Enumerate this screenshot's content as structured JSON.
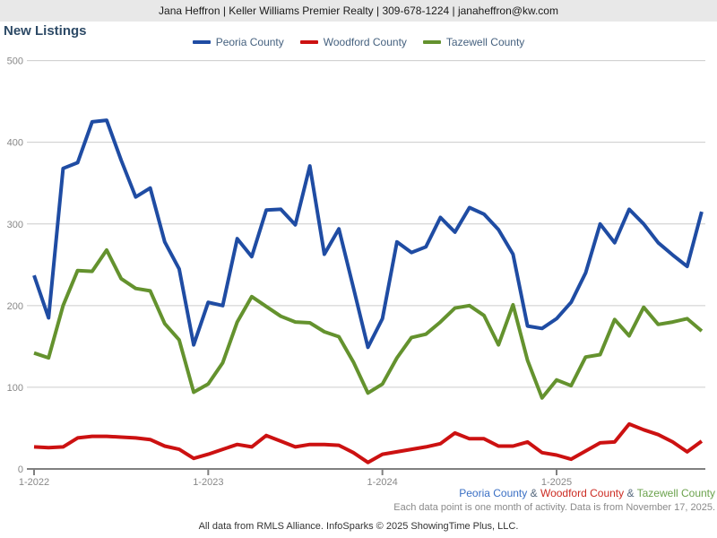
{
  "header": {
    "text": "Jana Heffron | Keller Williams Premier Realty | 309-678-1224 | janaheffron@kw.com"
  },
  "title": "New Listings",
  "legend": [
    {
      "label": "Peoria County",
      "color": "#1f4ca3"
    },
    {
      "label": "Woodford County",
      "color": "#cc1111"
    },
    {
      "label": "Tazewell County",
      "color": "#64922e"
    }
  ],
  "colors": {
    "header_bg": "#e8e8e8",
    "title_text": "#2d4a66",
    "legend_text": "#45617f",
    "grid_line": "#cccccc",
    "axis_line": "#808080",
    "tick_label": "#888888",
    "note_text": "#8a8a8a",
    "attribution_text": "#333333",
    "amp_text": "#55687d"
  },
  "chart_data": {
    "type": "line",
    "title": "New Listings",
    "xlabel": "",
    "ylabel": "",
    "ylim": [
      0,
      500
    ],
    "y_ticks": [
      0,
      100,
      200,
      300,
      400,
      500
    ],
    "grid": true,
    "legend_position": "top-center",
    "x_tick_labels": [
      "1-2022",
      "1-2023",
      "1-2024",
      "1-2025"
    ],
    "x": [
      "1-2022",
      "2-2022",
      "3-2022",
      "4-2022",
      "5-2022",
      "6-2022",
      "7-2022",
      "8-2022",
      "9-2022",
      "10-2022",
      "11-2022",
      "12-2022",
      "1-2023",
      "2-2023",
      "3-2023",
      "4-2023",
      "5-2023",
      "6-2023",
      "7-2023",
      "8-2023",
      "9-2023",
      "10-2023",
      "11-2023",
      "12-2023",
      "1-2024",
      "2-2024",
      "3-2024",
      "4-2024",
      "5-2024",
      "6-2024",
      "7-2024",
      "8-2024",
      "9-2024",
      "10-2024",
      "11-2024",
      "12-2024",
      "1-2025",
      "2-2025",
      "3-2025",
      "4-2025",
      "5-2025",
      "6-2025",
      "7-2025",
      "8-2025",
      "9-2025",
      "10-2025",
      "11-2025"
    ],
    "series": [
      {
        "name": "Peoria County",
        "color": "#1f4ca3",
        "values": [
          237,
          185,
          368,
          375,
          425,
          427,
          378,
          333,
          344,
          278,
          245,
          152,
          204,
          200,
          282,
          260,
          317,
          318,
          299,
          371,
          263,
          294,
          222,
          149,
          184,
          278,
          265,
          272,
          308,
          290,
          320,
          312,
          293,
          263,
          175,
          172,
          184,
          204,
          240,
          300,
          277,
          318,
          300,
          277,
          262,
          248,
          315
        ]
      },
      {
        "name": "Woodford County",
        "color": "#cc1111",
        "values": [
          27,
          26,
          27,
          38,
          40,
          40,
          39,
          38,
          36,
          28,
          24,
          13,
          18,
          24,
          30,
          27,
          41,
          34,
          27,
          30,
          30,
          29,
          20,
          8,
          18,
          21,
          24,
          27,
          31,
          44,
          37,
          37,
          28,
          28,
          33,
          20,
          17,
          12,
          22,
          32,
          33,
          55,
          48,
          42,
          33,
          21,
          34
        ]
      },
      {
        "name": "Tazewell County",
        "color": "#64922e",
        "values": [
          142,
          136,
          200,
          243,
          242,
          268,
          233,
          221,
          218,
          178,
          158,
          94,
          104,
          130,
          180,
          211,
          199,
          187,
          180,
          179,
          168,
          162,
          131,
          93,
          104,
          136,
          161,
          165,
          180,
          197,
          200,
          188,
          152,
          201,
          133,
          87,
          109,
          102,
          137,
          140,
          183,
          163,
          198,
          177,
          180,
          184,
          169
        ]
      }
    ]
  },
  "footer": {
    "counties": [
      {
        "label": "Peoria County",
        "color": "#3a6fc4"
      },
      {
        "label": "Woodford County",
        "color": "#cc2b22"
      },
      {
        "label": "Tazewell County",
        "color": "#6ba24c"
      }
    ],
    "amp": "&",
    "note": "Each data point is one month of activity. Data is from November 17, 2025.",
    "attribution": "All data from RMLS Alliance. InfoSparks © 2025 ShowingTime Plus, LLC."
  }
}
